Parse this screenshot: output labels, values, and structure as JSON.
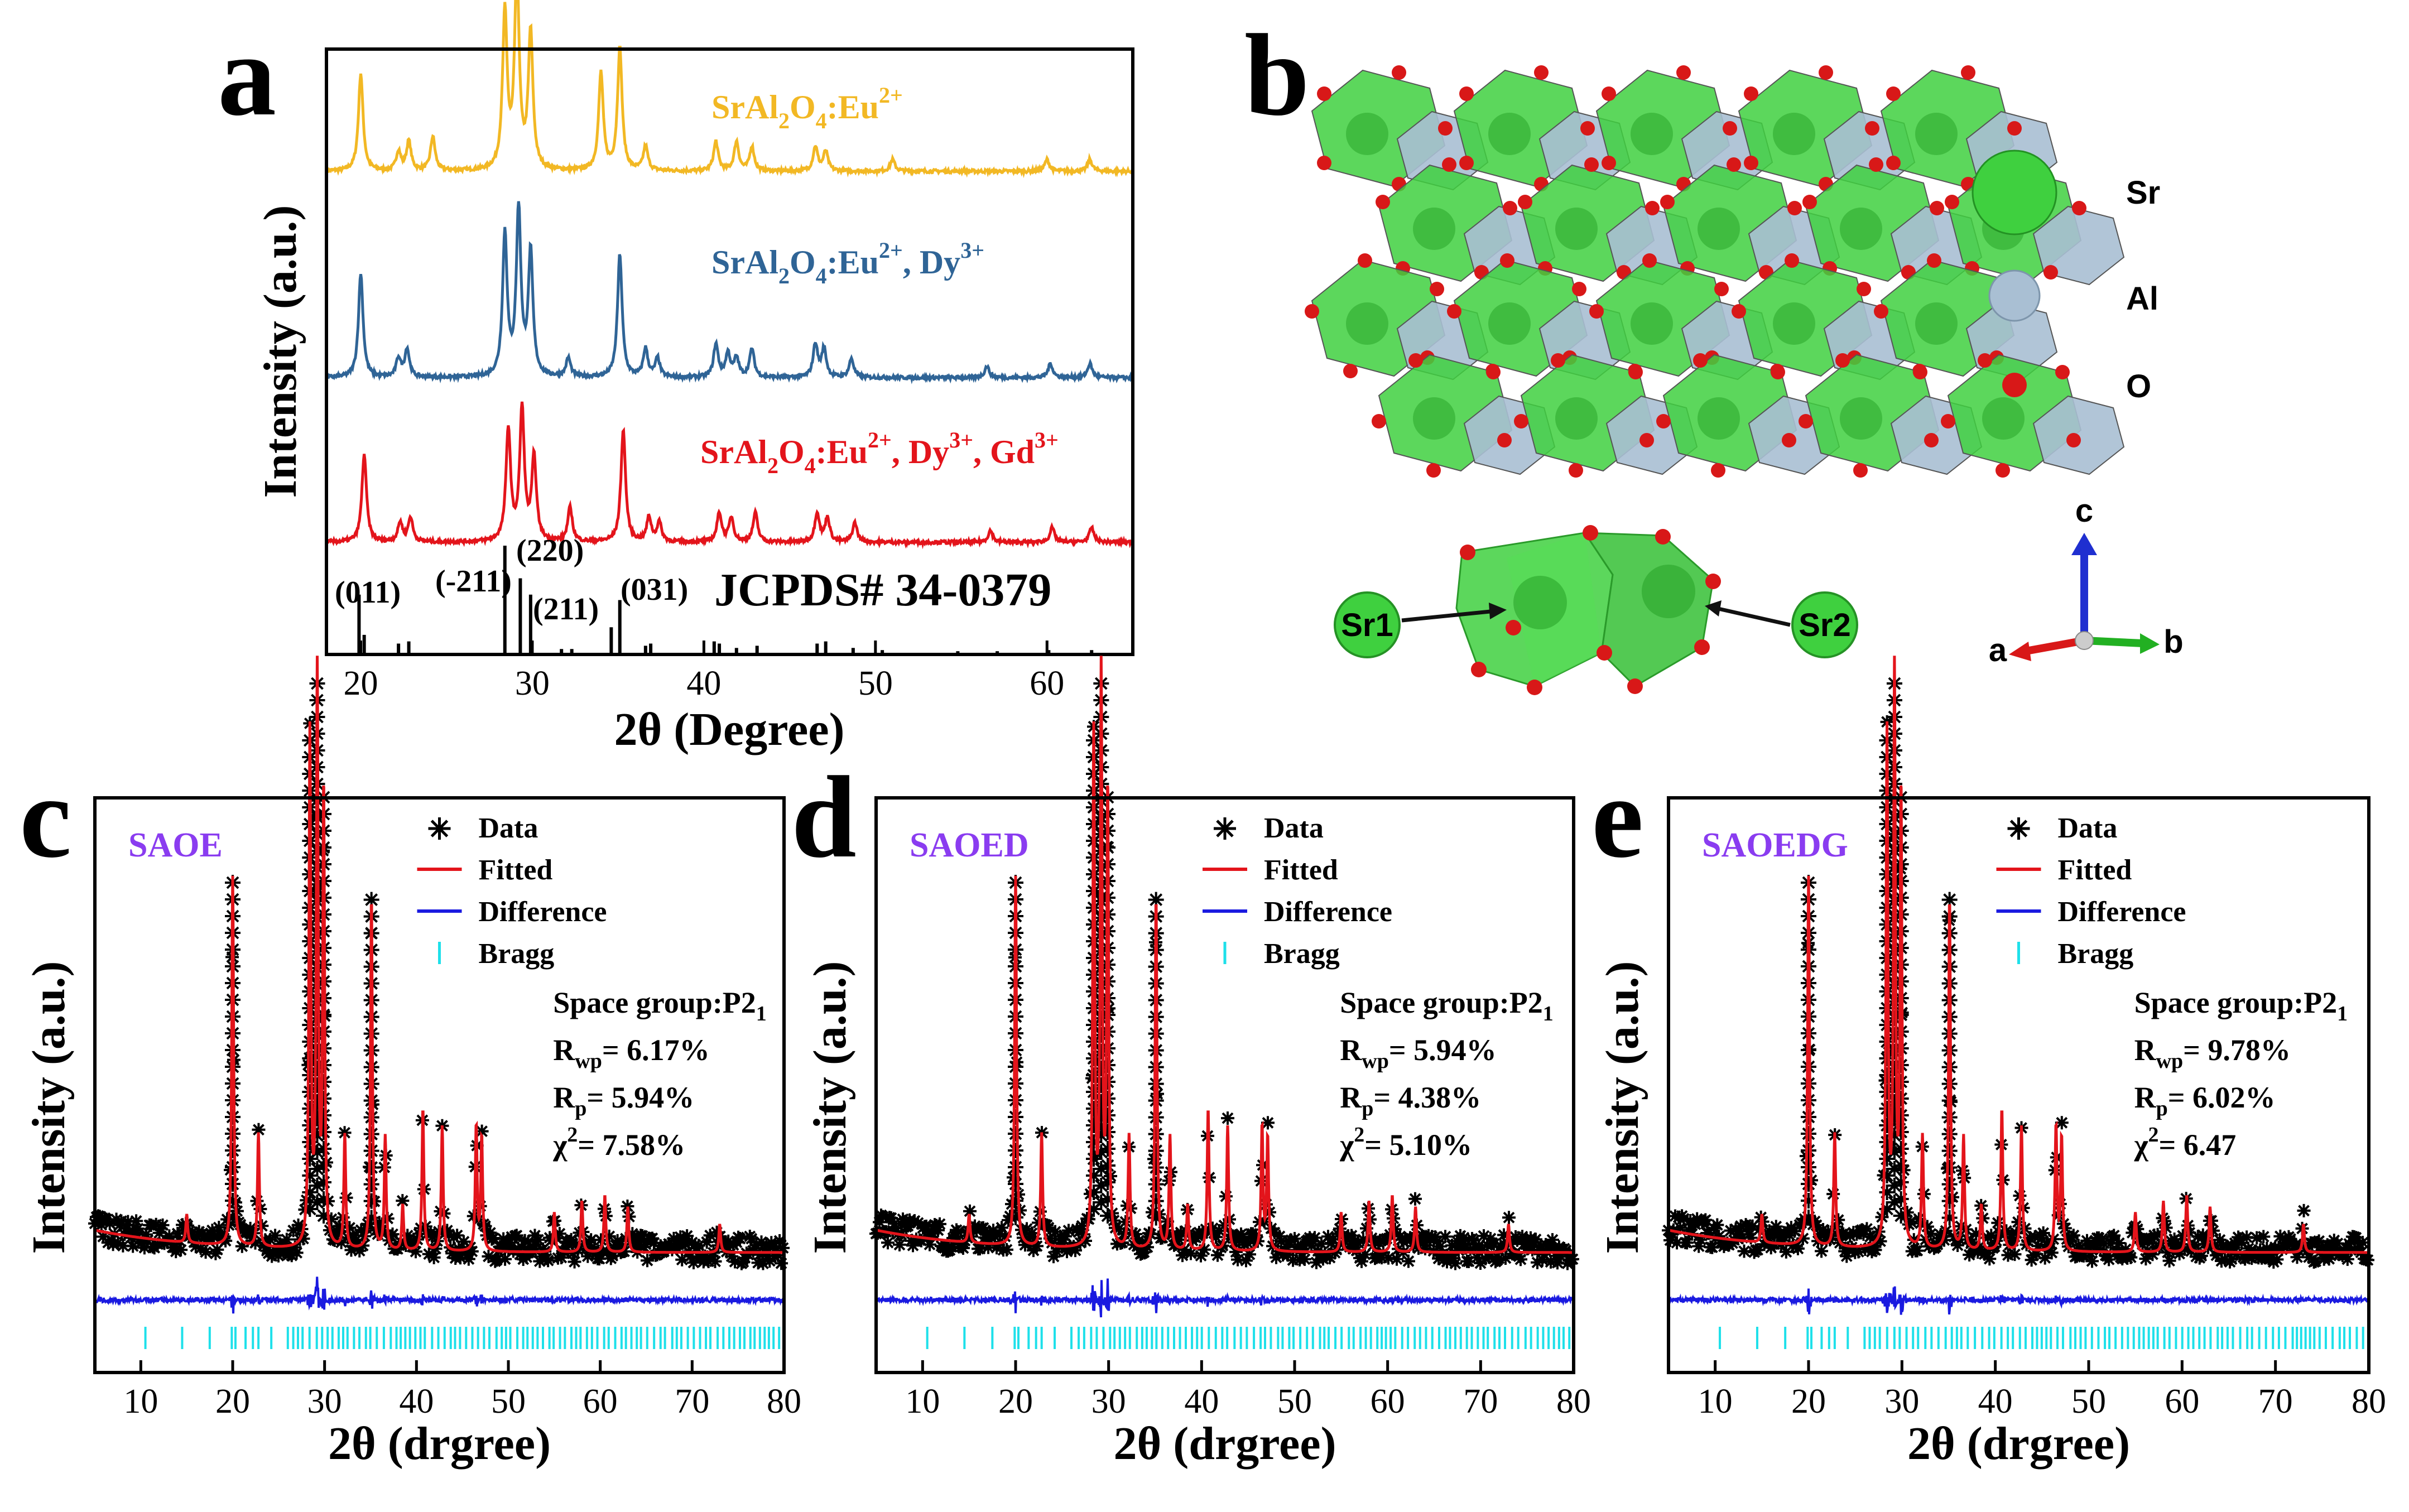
{
  "panel_labels": [
    "a",
    "b",
    "c",
    "d",
    "e"
  ],
  "chart_data": [
    {
      "id": "a",
      "type": "line",
      "xlabel": "2θ (Degree)",
      "ylabel": "Intensity (a.u.)",
      "xlim": [
        18,
        65
      ],
      "xticks": [
        20,
        30,
        40,
        50,
        60
      ],
      "series": [
        {
          "name": "SrAl2O4:Eu2+",
          "label_main": "SrAl",
          "label_parts": [
            "2",
            "O",
            "4",
            ":Eu",
            "2+",
            "",
            "",
            "",
            ""
          ],
          "color": "#f2b824",
          "peaks": [
            [
              20.0,
              1.0
            ],
            [
              22.2,
              0.2
            ],
            [
              22.8,
              0.3
            ],
            [
              24.2,
              0.35
            ],
            [
              28.4,
              1.6
            ],
            [
              29.1,
              2.0
            ],
            [
              29.9,
              1.4
            ],
            [
              34.0,
              1.0
            ],
            [
              35.1,
              1.25
            ],
            [
              36.6,
              0.25
            ],
            [
              40.7,
              0.3
            ],
            [
              41.9,
              0.3
            ],
            [
              42.8,
              0.25
            ],
            [
              46.5,
              0.25
            ],
            [
              47.1,
              0.2
            ],
            [
              51.0,
              0.12
            ],
            [
              60.0,
              0.12
            ],
            [
              62.5,
              0.12
            ]
          ]
        },
        {
          "name": "SrAl2O4:Eu2+, Dy3+",
          "label_main": "SrAl",
          "label_parts": [
            "2",
            "O",
            "4",
            ":Eu",
            "2+",
            ", Dy",
            "3+",
            "",
            ""
          ],
          "color": "#2f6496",
          "peaks": [
            [
              20.0,
              1.1
            ],
            [
              22.2,
              0.2
            ],
            [
              22.7,
              0.3
            ],
            [
              28.4,
              1.5
            ],
            [
              29.2,
              1.75
            ],
            [
              29.9,
              1.3
            ],
            [
              32.1,
              0.2
            ],
            [
              35.1,
              1.3
            ],
            [
              36.6,
              0.3
            ],
            [
              37.3,
              0.2
            ],
            [
              40.7,
              0.35
            ],
            [
              41.4,
              0.25
            ],
            [
              41.9,
              0.2
            ],
            [
              42.8,
              0.3
            ],
            [
              46.5,
              0.35
            ],
            [
              47.0,
              0.3
            ],
            [
              48.6,
              0.2
            ],
            [
              56.5,
              0.12
            ],
            [
              60.2,
              0.15
            ],
            [
              62.5,
              0.15
            ]
          ]
        },
        {
          "name": "SrAl2O4:Eu2+, Dy3+, Gd3+",
          "label_main": "SrAl",
          "label_parts": [
            "2",
            "O",
            "4",
            ":Eu",
            "2+",
            ", Dy",
            "3+",
            ", Gd",
            "3+"
          ],
          "color": "#e3141b",
          "peaks": [
            [
              20.2,
              0.9
            ],
            [
              22.3,
              0.2
            ],
            [
              22.9,
              0.25
            ],
            [
              28.6,
              1.15
            ],
            [
              29.4,
              1.35
            ],
            [
              30.1,
              0.85
            ],
            [
              32.2,
              0.35
            ],
            [
              35.3,
              1.15
            ],
            [
              36.8,
              0.25
            ],
            [
              37.4,
              0.2
            ],
            [
              40.9,
              0.3
            ],
            [
              41.6,
              0.25
            ],
            [
              43.0,
              0.3
            ],
            [
              46.6,
              0.3
            ],
            [
              47.2,
              0.25
            ],
            [
              48.8,
              0.2
            ],
            [
              56.7,
              0.12
            ],
            [
              60.3,
              0.15
            ],
            [
              62.6,
              0.15
            ]
          ]
        }
      ],
      "reference": {
        "label": "JCPDS# 34-0379",
        "sticks": [
          [
            19.9,
            0.55
          ],
          [
            20.2,
            0.18
          ],
          [
            22.2,
            0.1
          ],
          [
            22.8,
            0.12
          ],
          [
            28.4,
            1.0
          ],
          [
            29.3,
            0.7
          ],
          [
            29.9,
            0.55
          ],
          [
            31.7,
            0.05
          ],
          [
            32.3,
            0.05
          ],
          [
            34.6,
            0.25
          ],
          [
            35.1,
            0.5
          ],
          [
            36.6,
            0.08
          ],
          [
            36.9,
            0.1
          ],
          [
            40.6,
            0.12
          ],
          [
            40.9,
            0.1
          ],
          [
            41.9,
            0.06
          ],
          [
            43.1,
            0.08
          ],
          [
            46.6,
            0.1
          ],
          [
            47.1,
            0.12
          ],
          [
            48.7,
            0.06
          ],
          [
            50.4,
            0.04
          ],
          [
            54.8,
            0.03
          ],
          [
            57.1,
            0.03
          ],
          [
            60.1,
            0.04
          ],
          [
            62.6,
            0.04
          ]
        ],
        "hkl": [
          {
            "text": "(011)",
            "x": 20
          },
          {
            "text": "(-211)",
            "x": 28.4
          },
          {
            "text": "(220)",
            "x": 29.3
          },
          {
            "text": "(211)",
            "x": 29.9
          },
          {
            "text": "(031)",
            "x": 35.1
          }
        ]
      }
    },
    {
      "id": "c",
      "type": "line",
      "sample": "SAOE",
      "xlabel": "2θ (drgree)",
      "ylabel": "Intensity (a.u.)",
      "xlim": [
        5,
        80
      ],
      "xticks": [
        10,
        20,
        30,
        40,
        50,
        60,
        70,
        80
      ],
      "legend": [
        "Data",
        "Fitted",
        "Difference",
        "Bragg"
      ],
      "space_group": "Space group:P2",
      "space_group_sub": "1",
      "rwp": "= 6.17%",
      "rp": "= 5.94%",
      "chi2": "= 7.58%",
      "peaks": [
        [
          20.0,
          0.65
        ],
        [
          22.8,
          0.2
        ],
        [
          28.4,
          0.9
        ],
        [
          29.2,
          1.0
        ],
        [
          29.9,
          0.8
        ],
        [
          32.2,
          0.2
        ],
        [
          35.1,
          0.62
        ],
        [
          36.6,
          0.2
        ],
        [
          40.7,
          0.25
        ],
        [
          42.8,
          0.22
        ],
        [
          46.5,
          0.22
        ],
        [
          47.1,
          0.2
        ]
      ]
    },
    {
      "id": "d",
      "type": "line",
      "sample": "SAOED",
      "xlabel": "2θ (drgree)",
      "ylabel": "Intensity (a.u.)",
      "xlim": [
        5,
        80
      ],
      "xticks": [
        10,
        20,
        30,
        40,
        50,
        60,
        70,
        80
      ],
      "legend": [
        "Data",
        "Fitted",
        "Difference",
        "Bragg"
      ],
      "space_group": "Space group:P2",
      "space_group_sub": "1",
      "rwp": "= 5.94%",
      "rp": "= 4.38%",
      "chi2": "= 5.10%",
      "peaks": [
        [
          20.0,
          0.65
        ],
        [
          22.8,
          0.2
        ],
        [
          28.4,
          0.9
        ],
        [
          29.2,
          1.0
        ],
        [
          29.9,
          0.8
        ],
        [
          32.2,
          0.2
        ],
        [
          35.1,
          0.62
        ],
        [
          36.6,
          0.2
        ],
        [
          40.7,
          0.25
        ],
        [
          42.8,
          0.22
        ],
        [
          46.5,
          0.22
        ],
        [
          47.1,
          0.2
        ]
      ]
    },
    {
      "id": "e",
      "type": "line",
      "sample": "SAOEDG",
      "xlabel": "2θ (drgree)",
      "ylabel": "Intensity (a.u.)",
      "xlim": [
        5,
        80
      ],
      "xticks": [
        10,
        20,
        30,
        40,
        50,
        60,
        70,
        80
      ],
      "legend": [
        "Data",
        "Fitted",
        "Difference",
        "Bragg"
      ],
      "space_group": "Space group:P2",
      "space_group_sub": "1",
      "rwp": "= 9.78%",
      "rp": "= 6.02%",
      "chi2": "= 6.47",
      "peaks": [
        [
          20.0,
          0.65
        ],
        [
          22.8,
          0.2
        ],
        [
          28.4,
          0.9
        ],
        [
          29.2,
          1.0
        ],
        [
          29.9,
          0.8
        ],
        [
          32.2,
          0.2
        ],
        [
          35.1,
          0.62
        ],
        [
          36.6,
          0.2
        ],
        [
          40.7,
          0.25
        ],
        [
          42.8,
          0.22
        ],
        [
          46.5,
          0.22
        ],
        [
          47.1,
          0.2
        ]
      ]
    }
  ],
  "structure": {
    "legend": [
      "Sr",
      "Al",
      "O"
    ],
    "site_labels": [
      "Sr1",
      "Sr2"
    ],
    "axes": [
      "c",
      "a",
      "b"
    ],
    "colors": {
      "sr": "#3fd03f",
      "al": "#a9bfd3",
      "o": "#d81818"
    }
  }
}
